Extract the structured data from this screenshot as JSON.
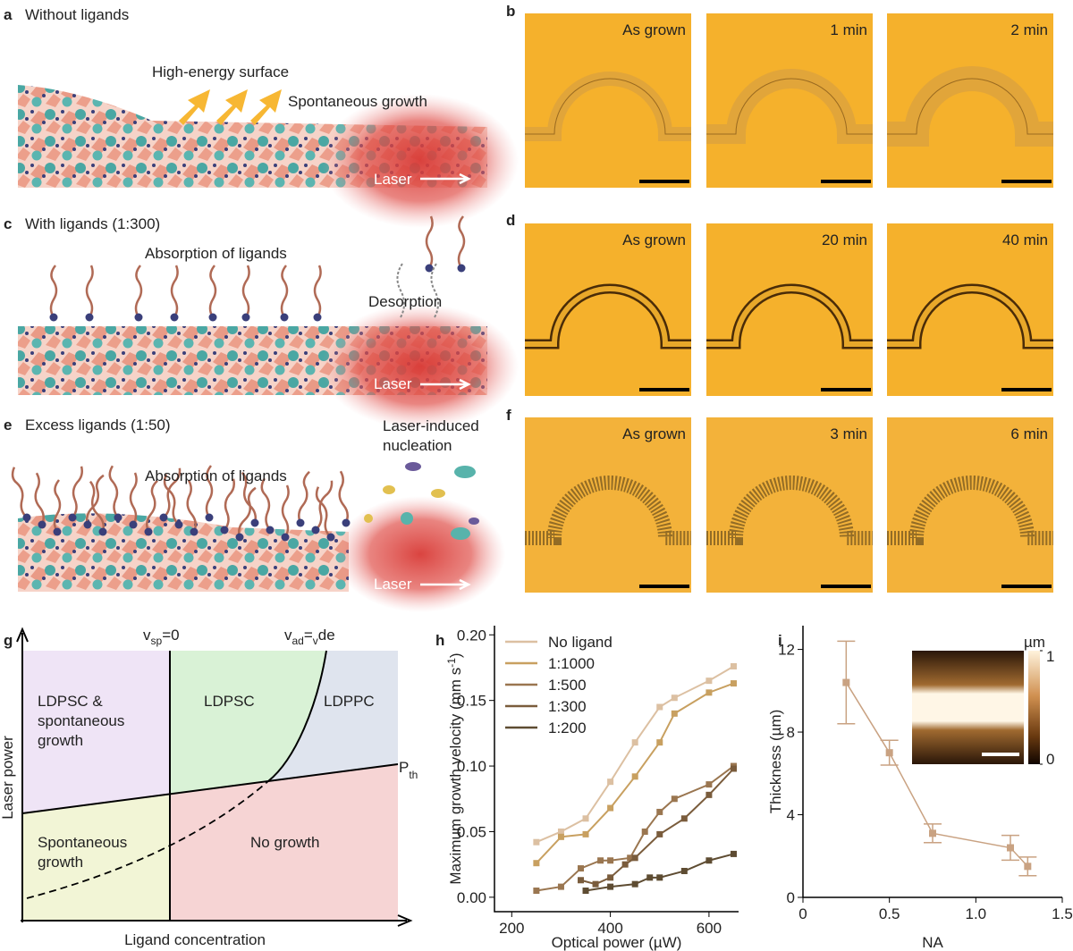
{
  "panel_a": {
    "label": "a",
    "title": "Without ligands",
    "notes": [
      "High-energy surface",
      "Spontaneous growth"
    ],
    "laser": "Laser"
  },
  "panel_b": {
    "label": "b",
    "frames": [
      "As grown",
      "1 min",
      "2 min"
    ]
  },
  "panel_c": {
    "label": "c",
    "title": "With ligands (1:300)",
    "notes": [
      "Absorption of ligands",
      "Desorption"
    ],
    "laser": "Laser"
  },
  "panel_d": {
    "label": "d",
    "frames": [
      "As grown",
      "20 min",
      "40 min"
    ]
  },
  "panel_e": {
    "label": "e",
    "title": "Excess ligands (1:50)",
    "notes": [
      "Laser-induced",
      "nucleation",
      "Absorption of ligands"
    ],
    "laser": "Laser"
  },
  "panel_f": {
    "label": "f",
    "frames": [
      "As grown",
      "3 min",
      "6 min"
    ]
  },
  "panel_g": {
    "label": "g",
    "x_label": "Ligand concentration",
    "y_label": "Laser power",
    "boundaries": {
      "vsp": [
        "v",
        "sp",
        "=0"
      ],
      "vad": [
        "v",
        "ad",
        "=",
        "v",
        "de"
      ],
      "pth": [
        "P",
        "th"
      ]
    },
    "regions": {
      "ldpsc_spont": [
        "LDPSC &",
        "spontaneous",
        "growth"
      ],
      "ldpsc": [
        "LDPSC"
      ],
      "ldppc": [
        "LDPPC"
      ],
      "spont": [
        "Spontaneous",
        "growth"
      ],
      "none": [
        "No growth"
      ]
    }
  },
  "chart_data": [
    {
      "type": "line",
      "panel_label": "h",
      "x_label": "Optical power (µW)",
      "y_label": [
        "Maximum growth velocity (mm s",
        "-1",
        ")"
      ],
      "xlim": [
        165,
        660
      ],
      "ylim": [
        -0.011,
        0.207
      ],
      "xticks": [
        200,
        400,
        600
      ],
      "yticks": [
        {
          "value": 0,
          "label": "0.00"
        },
        {
          "value": 0.05,
          "label": "0.05"
        },
        {
          "value": 0.1,
          "label": "0.10"
        },
        {
          "value": 0.15,
          "label": "0.15"
        },
        {
          "value": 0.2,
          "label": "0.20"
        }
      ],
      "legend": "top-left",
      "series": [
        {
          "name": "No ligand",
          "color": "#dcc0a2",
          "x": [
            250,
            300,
            350,
            400,
            450,
            500,
            530,
            600,
            650
          ],
          "values": [
            0.042,
            0.05,
            0.06,
            0.088,
            0.118,
            0.145,
            0.152,
            0.165,
            0.176
          ]
        },
        {
          "name": "1:1000",
          "color": "#c8a060",
          "x": [
            250,
            300,
            350,
            400,
            450,
            500,
            530,
            600,
            650
          ],
          "values": [
            0.026,
            0.046,
            0.048,
            0.068,
            0.092,
            0.118,
            0.14,
            0.156,
            0.163
          ]
        },
        {
          "name": "1:500",
          "color": "#9a7650",
          "x": [
            250,
            300,
            340,
            380,
            400,
            440,
            470,
            500,
            530,
            600,
            650
          ],
          "values": [
            0.005,
            0.008,
            0.022,
            0.028,
            0.028,
            0.03,
            0.05,
            0.065,
            0.075,
            0.086,
            0.1
          ]
        },
        {
          "name": "1:300",
          "color": "#7a5c3c",
          "x": [
            340,
            370,
            400,
            430,
            450,
            500,
            550,
            600,
            650
          ],
          "values": [
            0.013,
            0.01,
            0.015,
            0.025,
            0.03,
            0.048,
            0.06,
            0.078,
            0.098
          ]
        },
        {
          "name": "1:200",
          "color": "#5e4c32",
          "x": [
            350,
            400,
            450,
            480,
            500,
            550,
            600,
            650
          ],
          "values": [
            0.005,
            0.008,
            0.01,
            0.015,
            0.015,
            0.02,
            0.028,
            0.033
          ]
        }
      ]
    },
    {
      "type": "errorline",
      "panel_label": "i",
      "x_label": "NA",
      "y_label": "Thickness (µm)",
      "color": "#c9a282",
      "xlim": [
        0,
        1.5
      ],
      "ylim": [
        0,
        13.15
      ],
      "xticks": [
        0,
        0.5,
        {
          "value": 1,
          "label": "1.0"
        },
        1.5
      ],
      "yticks": [
        0,
        4,
        8,
        12
      ],
      "x": [
        0.25,
        0.5,
        0.75,
        1.2,
        1.3
      ],
      "values": [
        10.4,
        7.0,
        3.1,
        2.4,
        1.5
      ],
      "errors": [
        2.0,
        0.6,
        0.45,
        0.6,
        0.45
      ],
      "inset": {
        "colorbar_label": "µm",
        "colorbar_lim": [
          0,
          1
        ],
        "colorbar_ticks": [
          0,
          1
        ]
      }
    }
  ]
}
